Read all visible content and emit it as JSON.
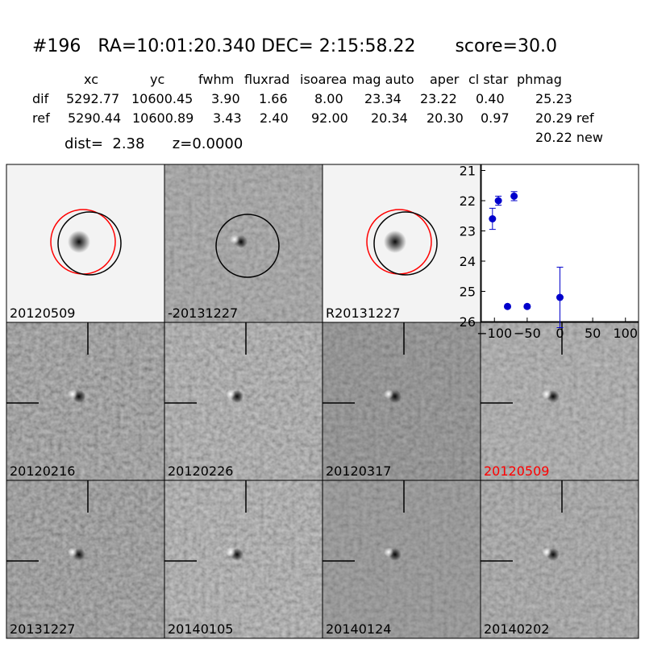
{
  "header": {
    "title": "#196   RA=10:01:20.340 DEC= 2:15:58.22       score=30.0",
    "dist": "dist=  2.38      z=0.0000"
  },
  "table": {
    "columns": [
      "xc",
      "yc",
      "fwhm",
      "fluxrad",
      "isoarea",
      "mag auto",
      "aper",
      "cl star",
      "phmag"
    ],
    "rows": [
      [
        "dif",
        "5292.77",
        "10600.45",
        "3.90",
        "1.66",
        "8.00",
        "23.34",
        "23.22",
        "0.40",
        "25.23"
      ],
      [
        "ref",
        "5290.44",
        "10600.89",
        "3.43",
        "2.40",
        "92.00",
        "20.34",
        "20.30",
        "0.97",
        "20.29 ref"
      ]
    ],
    "extra": "20.22 new"
  },
  "panels": [
    {
      "label": "20120509"
    },
    {
      "label": "-20131227"
    },
    {
      "label": "R20131227"
    },
    {
      "label": "20120216"
    },
    {
      "label": "20120226"
    },
    {
      "label": "20120317"
    },
    {
      "label": "20120509",
      "label_color": "#ff0000"
    },
    {
      "label": "20131227"
    },
    {
      "label": "20140105"
    },
    {
      "label": "20140124"
    },
    {
      "label": "20140202"
    }
  ],
  "chart_data": {
    "type": "scatter",
    "x": [
      -103,
      -94,
      -80,
      -70,
      -50,
      0
    ],
    "values": [
      22.6,
      22.0,
      25.5,
      21.85,
      25.5,
      25.2
    ],
    "errors": [
      0.35,
      0.15,
      0.05,
      0.15,
      0.05,
      1.0
    ],
    "color": "#0000cc",
    "xlim": [
      -120,
      120
    ],
    "ylim": [
      20.8,
      26
    ],
    "y_inverted": true,
    "xticks": [
      {
        "value": -100,
        "label": "−100"
      },
      {
        "value": -50,
        "label": "−50"
      },
      0,
      50,
      100
    ],
    "yticks": [
      21,
      22,
      23,
      24,
      25,
      26
    ]
  }
}
